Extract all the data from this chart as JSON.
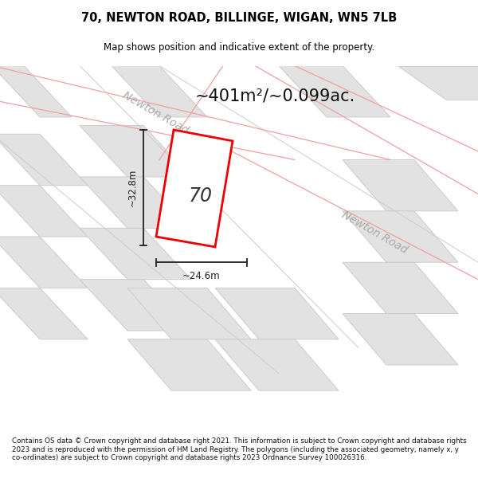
{
  "title_line1": "70, NEWTON ROAD, BILLINGE, WIGAN, WN5 7LB",
  "title_line2": "Map shows position and indicative extent of the property.",
  "area_text": "~401m²/~0.099ac.",
  "number_label": "70",
  "dim_width": "~24.6m",
  "dim_height": "~32.8m",
  "road_label_top": "Newton Road",
  "road_label_right": "Newton Road",
  "footer_text": "Contains OS data © Crown copyright and database right 2021. This information is subject to Crown copyright and database rights 2023 and is reproduced with the permission of HM Land Registry. The polygons (including the associated geometry, namely x, y co-ordinates) are subject to Crown copyright and database rights 2023 Ordnance Survey 100026316.",
  "map_bg": "#f5f5f5",
  "road_color": "#ffffff",
  "building_fill": "#e2e2e2",
  "building_edge": "#cccccc",
  "plot_fill": "#ffffff",
  "plot_edge": "#ee0000",
  "road_line_color": "#f0a0a0",
  "road_line_color2": "#cccccc",
  "title_color": "#000000",
  "label_color": "#aaaaaa",
  "dim_color": "#222222",
  "area_color": "#111111",
  "footer_color": "#111111"
}
